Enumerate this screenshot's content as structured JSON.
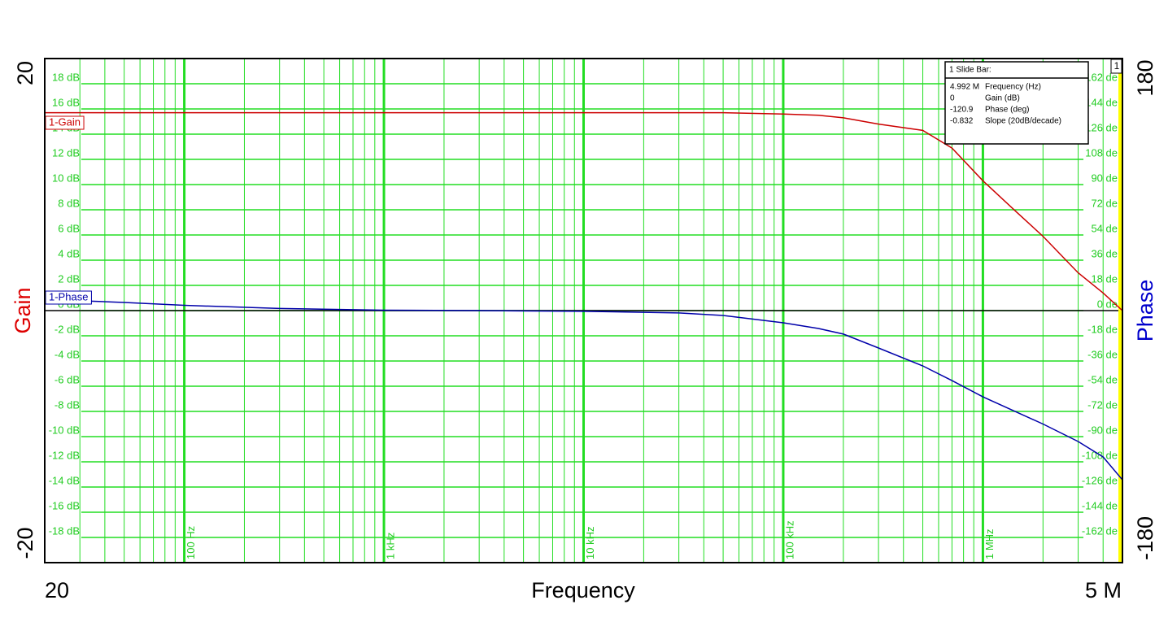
{
  "chart_data": {
    "type": "line",
    "x_title": "Frequency",
    "y_title": "Gain",
    "y2_title": "Phase",
    "xscale": "log",
    "grid": true,
    "xlim": [
      20,
      5000000
    ],
    "xticks": [
      20,
      {
        "value": 100,
        "label": "100 Hz"
      },
      {
        "value": 1000,
        "label": "1 kHz"
      },
      {
        "value": 10000,
        "label": "10 kHz"
      },
      {
        "value": 100000,
        "label": "100 kHz"
      },
      {
        "value": 1000000,
        "label": "1 MHz"
      },
      {
        "value": 5000000,
        "label": "5 M"
      }
    ],
    "ylim": [
      -20,
      20
    ],
    "yticks": [
      {
        "value": 18,
        "label": "18 dB"
      },
      {
        "value": 16,
        "label": "16 dB"
      },
      {
        "value": 14,
        "label": "14 dB"
      },
      {
        "value": 12,
        "label": "12 dB"
      },
      {
        "value": 10,
        "label": "10 dB"
      },
      {
        "value": 8,
        "label": "8 dB"
      },
      {
        "value": 6,
        "label": "6 dB"
      },
      {
        "value": 4,
        "label": "4 dB"
      },
      {
        "value": 2,
        "label": "2 dB"
      },
      {
        "value": 0,
        "label": "0 dB"
      },
      {
        "value": -2,
        "label": "-2 dB"
      },
      {
        "value": -4,
        "label": "-4 dB"
      },
      {
        "value": -6,
        "label": "-6 dB"
      },
      {
        "value": -8,
        "label": "-8 dB"
      },
      {
        "value": -10,
        "label": "-10 dB"
      },
      {
        "value": -12,
        "label": "-12 dB"
      },
      {
        "value": -14,
        "label": "-14 dB"
      },
      {
        "value": -16,
        "label": "-16 dB"
      },
      {
        "value": -18,
        "label": "-18 dB"
      }
    ],
    "y2lim": [
      -180,
      180
    ],
    "y2ticks": [
      {
        "value": 162,
        "label": "162 de"
      },
      {
        "value": 144,
        "label": "144 de"
      },
      {
        "value": 126,
        "label": "126 de"
      },
      {
        "value": 108,
        "label": "108 de"
      },
      {
        "value": 90,
        "label": "90 de"
      },
      {
        "value": 72,
        "label": "72 de"
      },
      {
        "value": 54,
        "label": "54 de"
      },
      {
        "value": 36,
        "label": "36 de"
      },
      {
        "value": 18,
        "label": "18 de"
      },
      {
        "value": 0,
        "label": "0 de"
      },
      {
        "value": -18,
        "label": "-18 de"
      },
      {
        "value": -36,
        "label": "-36 de"
      },
      {
        "value": -54,
        "label": "-54 de"
      },
      {
        "value": -72,
        "label": "-72 de"
      },
      {
        "value": -90,
        "label": "-90 de"
      },
      {
        "value": -108,
        "label": "-108 de"
      },
      {
        "value": -126,
        "label": "-126 de"
      },
      {
        "value": -144,
        "label": "-144 de"
      },
      {
        "value": -162,
        "label": "-162 de"
      }
    ],
    "x": [
      20,
      50,
      100,
      300,
      1000,
      3000,
      10000,
      30000,
      50000,
      100000,
      150000,
      200000,
      300000,
      500000,
      700000,
      1000000,
      1500000,
      2000000,
      3000000,
      4000000,
      5000000
    ],
    "series": [
      {
        "name": "1-Gain",
        "color": "#cc0000",
        "values": [
          15.7,
          15.7,
          15.7,
          15.7,
          15.7,
          15.7,
          15.7,
          15.7,
          15.7,
          15.6,
          15.5,
          15.3,
          14.8,
          14.3,
          12.9,
          10.3,
          7.7,
          5.9,
          3.0,
          1.4,
          0
        ]
      },
      {
        "name": "1-Phase",
        "color": "#0000aa",
        "axis": "y2",
        "values": [
          8,
          5.8,
          3.8,
          1.5,
          0.3,
          0,
          -0.5,
          -1.7,
          -3.5,
          -8.7,
          -12.8,
          -16.8,
          -26.7,
          -39.5,
          -50,
          -61.6,
          -73,
          -81,
          -93.5,
          -104.5,
          -120.9
        ]
      }
    ],
    "cursor_label": "1",
    "slide_bar": {
      "title": "1  Slide Bar:",
      "rows": [
        [
          "4.992 M",
          "Frequency (Hz)"
        ],
        [
          "0",
          "Gain (dB)"
        ],
        [
          "-120.9",
          "Phase (deg)"
        ],
        [
          "-0.832",
          "Slope (20dB/decade)"
        ]
      ]
    }
  }
}
